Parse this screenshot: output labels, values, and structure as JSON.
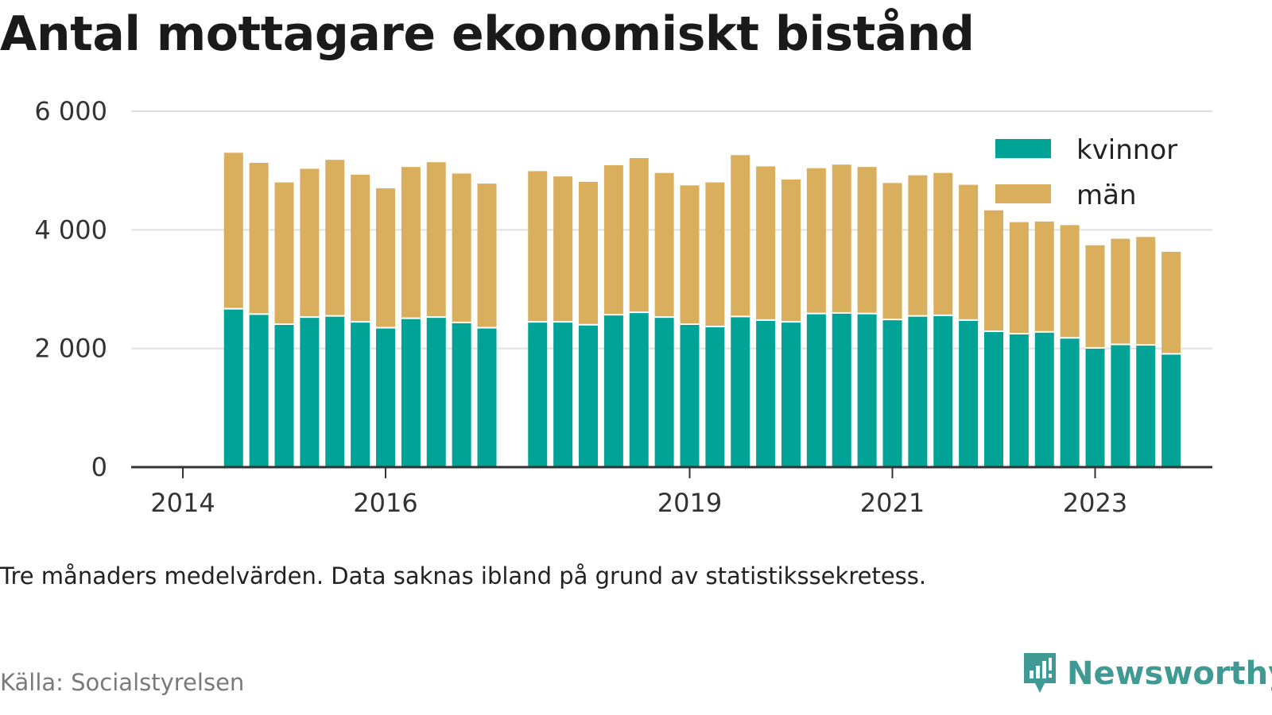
{
  "title": "Antal mottagare ekonomiskt bistånd",
  "note": "Tre månaders medelvärden. Data saknas ibland på grund av statistikssekretess.",
  "source": "Källa: Socialstyrelsen",
  "brand": "Newsworthy",
  "colors": {
    "kvinnor": "#00a396",
    "man": "#d9ae5c",
    "grid": "#e0e0e0",
    "axis": "#333333",
    "brand": "#3e9a92"
  },
  "chart_data": {
    "type": "bar",
    "stacked": true,
    "ylim": [
      0,
      6000
    ],
    "yticks": [
      0,
      2000,
      4000,
      6000
    ],
    "ytick_labels": [
      "0",
      "2 000",
      "4 000",
      "6 000"
    ],
    "xlim": [
      2014,
      2024.35
    ],
    "xticks": [
      2014,
      2016,
      2019,
      2021,
      2023
    ],
    "xtick_labels": [
      "2014",
      "2016",
      "2019",
      "2021",
      "2023"
    ],
    "legend_position": "top-right",
    "grid": true,
    "x": [
      2014.5,
      2014.75,
      2015.0,
      2015.25,
      2015.5,
      2015.75,
      2016.0,
      2016.25,
      2016.5,
      2016.75,
      2017.0,
      2017.5,
      2017.75,
      2018.0,
      2018.25,
      2018.5,
      2018.75,
      2019.0,
      2019.25,
      2019.5,
      2019.75,
      2020.0,
      2020.25,
      2020.5,
      2020.75,
      2021.0,
      2021.25,
      2021.5,
      2021.75,
      2022.0,
      2022.25,
      2022.5,
      2022.75,
      2023.0,
      2023.25,
      2023.5,
      2023.75
    ],
    "series": [
      {
        "name": "kvinnor",
        "values": [
          2670,
          2580,
          2410,
          2530,
          2550,
          2450,
          2350,
          2510,
          2530,
          2440,
          2350,
          2450,
          2450,
          2400,
          2570,
          2610,
          2530,
          2410,
          2370,
          2540,
          2480,
          2450,
          2590,
          2600,
          2590,
          2490,
          2550,
          2560,
          2480,
          2290,
          2250,
          2280,
          2180,
          2010,
          2070,
          2060,
          1910
        ]
      },
      {
        "name": "män",
        "values": [
          2630,
          2550,
          2390,
          2500,
          2630,
          2480,
          2350,
          2550,
          2610,
          2510,
          2430,
          2540,
          2450,
          2410,
          2520,
          2600,
          2430,
          2340,
          2430,
          2720,
          2590,
          2400,
          2450,
          2500,
          2470,
          2300,
          2370,
          2400,
          2280,
          2040,
          1880,
          1860,
          1900,
          1730,
          1780,
          1820,
          1720
        ]
      }
    ]
  }
}
